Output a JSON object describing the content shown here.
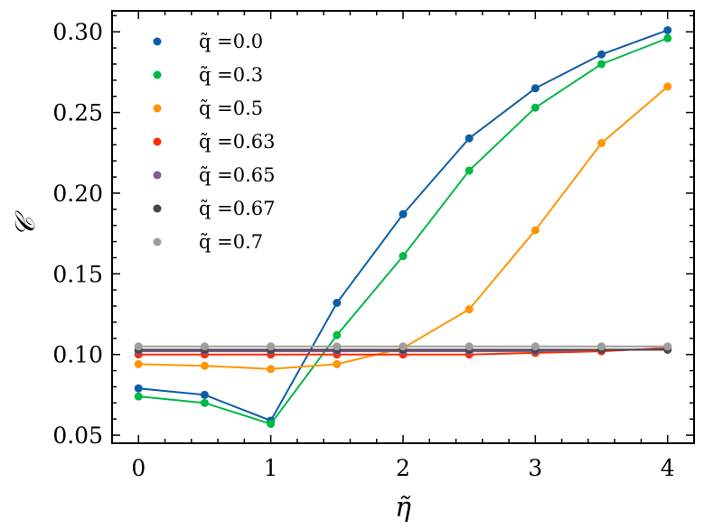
{
  "chart_data": {
    "type": "line",
    "title": "",
    "xlabel": "η̃",
    "ylabel": "𝒞",
    "xlim": [
      -0.2,
      4.2
    ],
    "ylim": [
      0.045,
      0.313
    ],
    "xticks": [
      0,
      1,
      2,
      3,
      4
    ],
    "xtick_labels": [
      "0",
      "1",
      "2",
      "3",
      "4"
    ],
    "yticks": [
      0.05,
      0.1,
      0.15,
      0.2,
      0.25,
      0.3
    ],
    "ytick_labels": [
      "0.05",
      "0.10",
      "0.15",
      "0.20",
      "0.25",
      "0.30"
    ],
    "legend_position": "top-left",
    "x": [
      0,
      0.5,
      1,
      1.5,
      2,
      2.5,
      3,
      3.5,
      4
    ],
    "series": [
      {
        "name": "q̃ =0.0",
        "label": "q̃ =0.0",
        "color": "#0C5DA5",
        "values": [
          0.079,
          0.075,
          0.059,
          0.132,
          0.187,
          0.234,
          0.265,
          0.286,
          0.301
        ]
      },
      {
        "name": "q̃ =0.3",
        "label": "q̃ =0.3",
        "color": "#00B945",
        "values": [
          0.074,
          0.07,
          0.057,
          0.112,
          0.161,
          0.214,
          0.253,
          0.28,
          0.296
        ]
      },
      {
        "name": "q̃ =0.5",
        "label": "q̃ =0.5",
        "color": "#FF9500",
        "values": [
          0.094,
          0.093,
          0.091,
          0.094,
          0.104,
          0.128,
          0.177,
          0.231,
          0.266
        ]
      },
      {
        "name": "q̃ =0.63",
        "label": "q̃ =0.63",
        "color": "#FF2C00",
        "values": [
          0.1,
          0.1,
          0.1,
          0.1,
          0.1,
          0.1,
          0.101,
          0.102,
          0.104
        ]
      },
      {
        "name": "q̃ =0.65",
        "label": "q̃ =0.65",
        "color": "#845B97",
        "values": [
          0.102,
          0.102,
          0.102,
          0.102,
          0.102,
          0.102,
          0.102,
          0.103,
          0.103
        ]
      },
      {
        "name": "q̃ =0.67",
        "label": "q̃ =0.67",
        "color": "#474747",
        "values": [
          0.103,
          0.103,
          0.103,
          0.103,
          0.103,
          0.103,
          0.103,
          0.103,
          0.103
        ]
      },
      {
        "name": "q̃ =0.7",
        "label": "q̃ =0.7",
        "color": "#9E9E9E",
        "values": [
          0.105,
          0.105,
          0.105,
          0.105,
          0.105,
          0.105,
          0.105,
          0.105,
          0.105
        ]
      }
    ]
  }
}
